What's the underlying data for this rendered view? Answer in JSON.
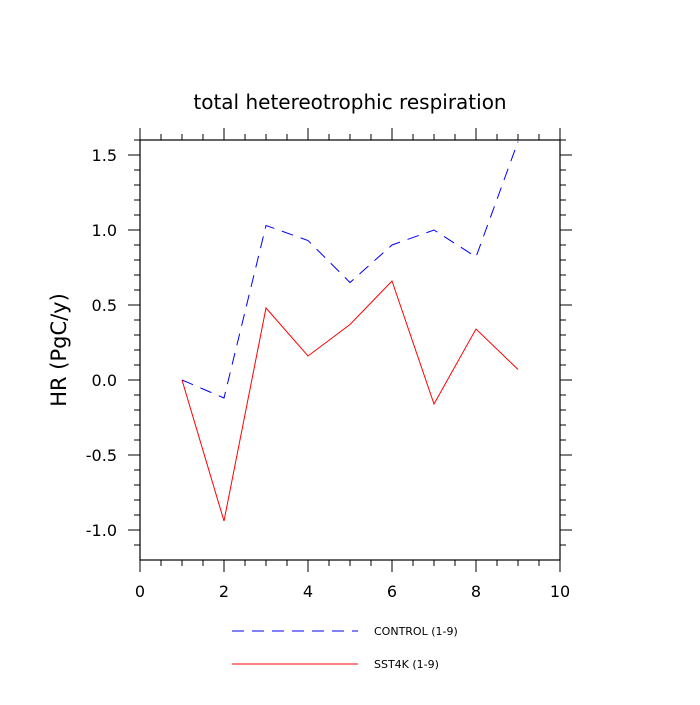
{
  "chart_data": {
    "type": "line",
    "title": "total hetereotrophic respiration",
    "xlabel": "",
    "ylabel": "HR  (PgC/y)",
    "xlim": [
      0,
      10
    ],
    "ylim": [
      -1.2,
      1.6
    ],
    "x_ticks": [
      0,
      2,
      4,
      6,
      8,
      10
    ],
    "x_tick_labels": [
      "0",
      "2",
      "4",
      "6",
      "8",
      "10"
    ],
    "y_ticks": [
      -1.0,
      -0.5,
      0.0,
      0.5,
      1.0,
      1.5
    ],
    "y_tick_labels": [
      "-1.0",
      "-0.5",
      "0.0",
      "0.5",
      "1.0",
      "1.5"
    ],
    "grid": false,
    "legend_position": "bottom",
    "x": [
      1,
      2,
      3,
      4,
      5,
      6,
      7,
      8,
      9
    ],
    "series": [
      {
        "name": "CONTROL (1-9)",
        "color": "#0000ff",
        "dash": "dashed",
        "values": [
          0.0,
          -0.12,
          1.03,
          0.93,
          0.65,
          0.9,
          1.0,
          0.82,
          1.59
        ]
      },
      {
        "name": "SST4K (1-9)",
        "color": "#ff0000",
        "dash": "solid",
        "values": [
          0.0,
          -0.94,
          0.48,
          0.16,
          0.37,
          0.66,
          -0.16,
          0.34,
          0.07
        ]
      }
    ]
  }
}
